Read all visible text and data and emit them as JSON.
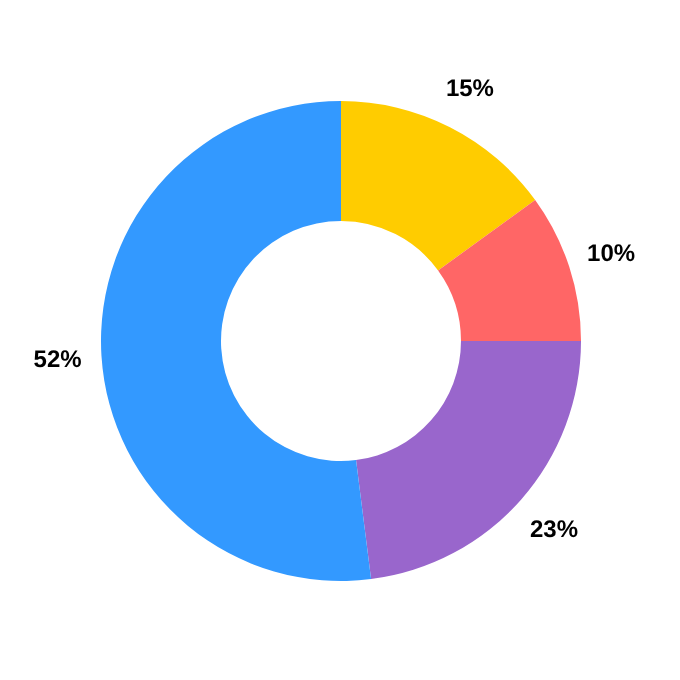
{
  "chart_data": {
    "type": "donut",
    "categories": [
      null,
      null,
      null,
      null
    ],
    "values": [
      15,
      10,
      23,
      52
    ],
    "colors": [
      "#ffcc00",
      "#ff6666",
      "#9966cc",
      "#3399ff"
    ],
    "value_labels": [
      "15%",
      "10%",
      "23%",
      "52%"
    ]
  }
}
